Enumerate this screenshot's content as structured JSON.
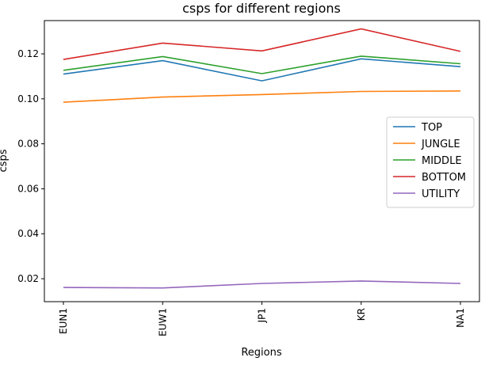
{
  "chart_data": {
    "type": "line",
    "title": "csps for different regions",
    "xlabel": "Regions",
    "ylabel": "csps",
    "categories": [
      "EUN1",
      "EUW1",
      "JP1",
      "KR",
      "NA1"
    ],
    "ylim": [
      0.0098,
      0.1348
    ],
    "yticks": [
      0.02,
      0.04,
      0.06,
      0.08,
      0.1,
      0.12
    ],
    "ytick_labels": [
      "0.02",
      "0.04",
      "0.06",
      "0.08",
      "0.10",
      "0.12"
    ],
    "grid": false,
    "legend_position": "center-right",
    "series": [
      {
        "name": "TOP",
        "color": "#1f77b4",
        "values": [
          0.111,
          0.117,
          0.108,
          0.1178,
          0.1143
        ]
      },
      {
        "name": "JUNGLE",
        "color": "#ff7f0e",
        "values": [
          0.0985,
          0.1008,
          0.1019,
          0.1033,
          0.1035
        ]
      },
      {
        "name": "MIDDLE",
        "color": "#2ca02c",
        "values": [
          0.1127,
          0.1188,
          0.1112,
          0.119,
          0.1156
        ]
      },
      {
        "name": "BOTTOM",
        "color": "#d62728",
        "values": [
          0.1175,
          0.1248,
          0.1213,
          0.1311,
          0.1211
        ]
      },
      {
        "name": "UTILITY",
        "color": "#9467bd",
        "values": [
          0.0161,
          0.0159,
          0.0179,
          0.019,
          0.0179
        ]
      }
    ]
  }
}
